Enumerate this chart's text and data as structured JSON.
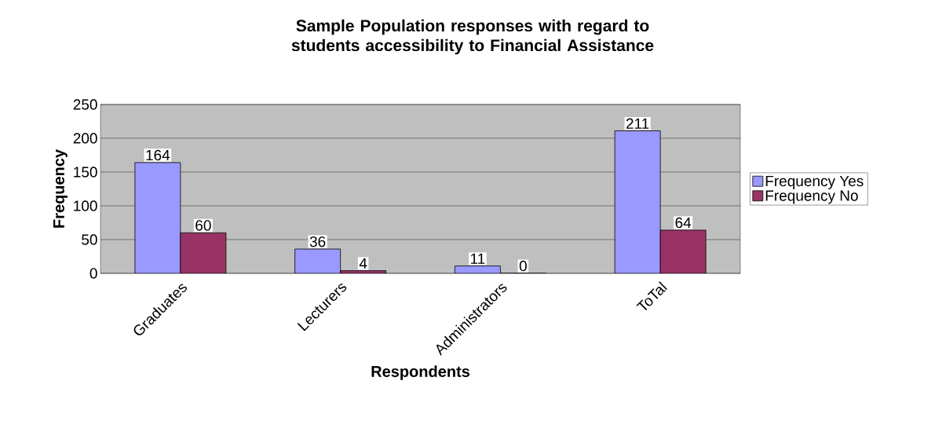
{
  "chart_data": {
    "type": "bar",
    "title": "Sample Population responses with regard to students accessibility to Financial Assistance",
    "xlabel": "Respondents",
    "ylabel": "Frequency",
    "categories": [
      "Graduates",
      "Lecturers",
      "Administrators",
      "ToTal"
    ],
    "series": [
      {
        "name": "Frequency Yes",
        "color": "#9999ff",
        "values": [
          164,
          36,
          11,
          211
        ]
      },
      {
        "name": "Frequency No",
        "color": "#993366",
        "values": [
          60,
          4,
          0,
          64
        ]
      }
    ],
    "ylim": [
      0,
      250
    ],
    "yticks": [
      0,
      50,
      100,
      150,
      200,
      250
    ],
    "grid": "y",
    "legend": "right",
    "data_labels": true
  }
}
